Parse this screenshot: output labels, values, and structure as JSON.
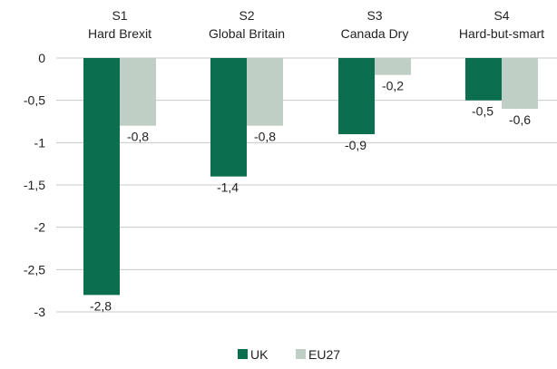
{
  "chart_data": {
    "type": "bar",
    "categories": [
      {
        "code": "S1",
        "name": "Hard Brexit"
      },
      {
        "code": "S2",
        "name": "Global Britain"
      },
      {
        "code": "S3",
        "name": "Canada Dry"
      },
      {
        "code": "S4",
        "name": "Hard-but-smart"
      }
    ],
    "series": [
      {
        "name": "UK",
        "color": "#0b6e4f",
        "values": [
          -2.8,
          -1.4,
          -0.9,
          -0.5
        ],
        "labels": [
          "-2,8",
          "-1,4",
          "-0,9",
          "-0,5"
        ]
      },
      {
        "name": "EU27",
        "color": "#bfcfc6",
        "values": [
          -0.8,
          -0.8,
          -0.2,
          -0.6
        ],
        "labels": [
          "-0,8",
          "-0,8",
          "-0,2",
          "-0,6"
        ]
      }
    ],
    "y_ticks": [
      {
        "value": 0,
        "label": "0"
      },
      {
        "value": -0.5,
        "label": "-0,5"
      },
      {
        "value": -1,
        "label": "-1"
      },
      {
        "value": -1.5,
        "label": "-1,5"
      },
      {
        "value": -2,
        "label": "-2"
      },
      {
        "value": -2.5,
        "label": "-2,5"
      },
      {
        "value": -3,
        "label": "-3"
      }
    ],
    "ylim": [
      -3,
      0
    ],
    "grid": true,
    "legend_position": "bottom"
  }
}
